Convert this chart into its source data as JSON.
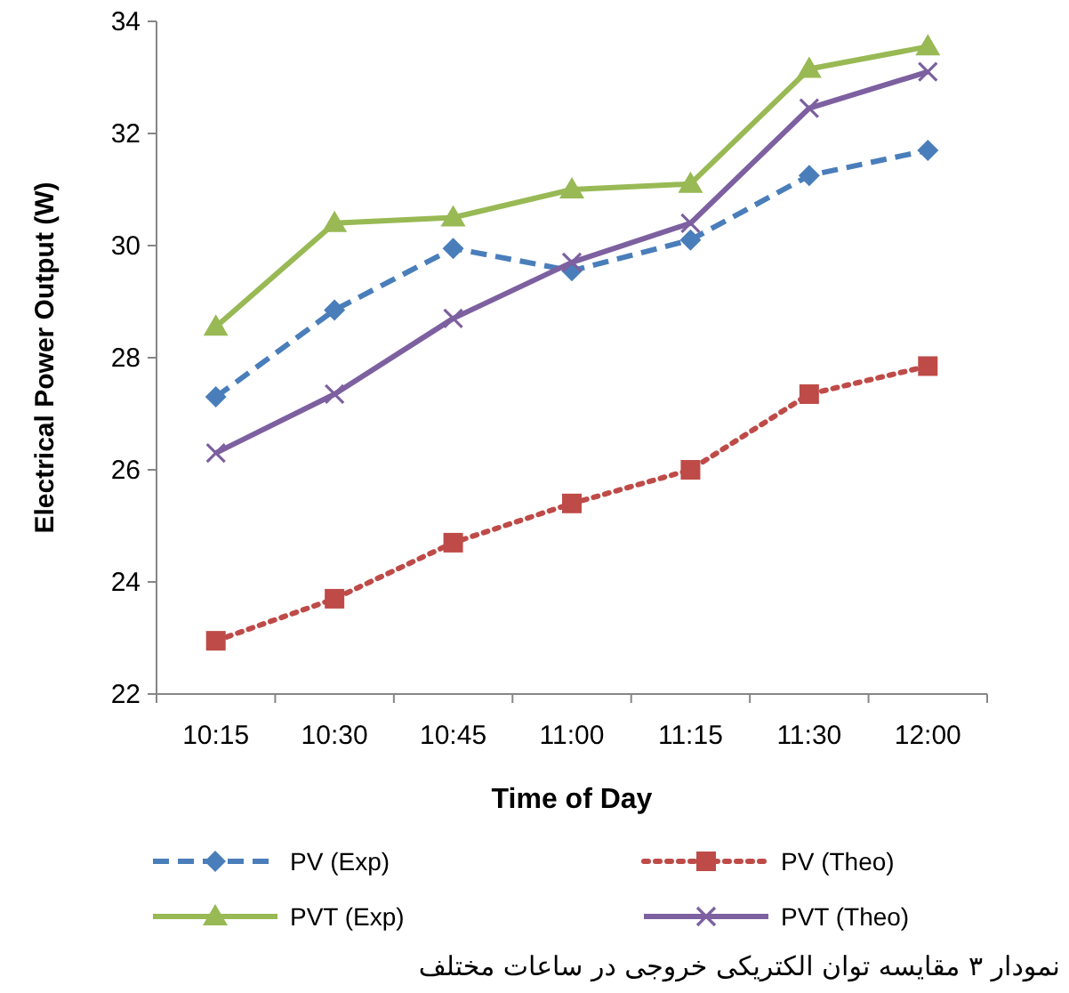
{
  "chart_data": {
    "type": "line",
    "xlabel": "Time of Day",
    "ylabel": "Electrical Power Output (W)",
    "categories": [
      "10:15",
      "10:30",
      "10:45",
      "11:00",
      "11:15",
      "11:30",
      "12:00"
    ],
    "ylim": [
      22,
      34
    ],
    "yticks": [
      22,
      24,
      26,
      28,
      30,
      32,
      34
    ],
    "grid": false,
    "legend": "bottom",
    "series": [
      {
        "name": "PV (Exp)",
        "color": "#4a7ebb",
        "marker": "diamond",
        "line_style": "dashed",
        "values": [
          27.3,
          28.85,
          29.95,
          29.55,
          30.1,
          31.25,
          31.7
        ]
      },
      {
        "name": "PV (Theo)",
        "color": "#be4b48",
        "marker": "square",
        "line_style": "dotted",
        "values": [
          22.95,
          23.7,
          24.7,
          25.4,
          26.0,
          27.35,
          27.85
        ]
      },
      {
        "name": "PVT (Exp)",
        "color": "#98b954",
        "marker": "triangle",
        "line_style": "solid",
        "values": [
          28.55,
          30.4,
          30.5,
          31.0,
          31.1,
          33.15,
          33.55
        ]
      },
      {
        "name": "PVT (Theo)",
        "color": "#7d60a0",
        "marker": "cross",
        "line_style": "solid",
        "values": [
          26.3,
          27.35,
          28.7,
          29.7,
          30.4,
          32.45,
          33.1
        ]
      }
    ],
    "annotations": [
      "نمودار ۳ مقایسه توان الکتریکی خروجی در ساعات مختلف"
    ]
  }
}
